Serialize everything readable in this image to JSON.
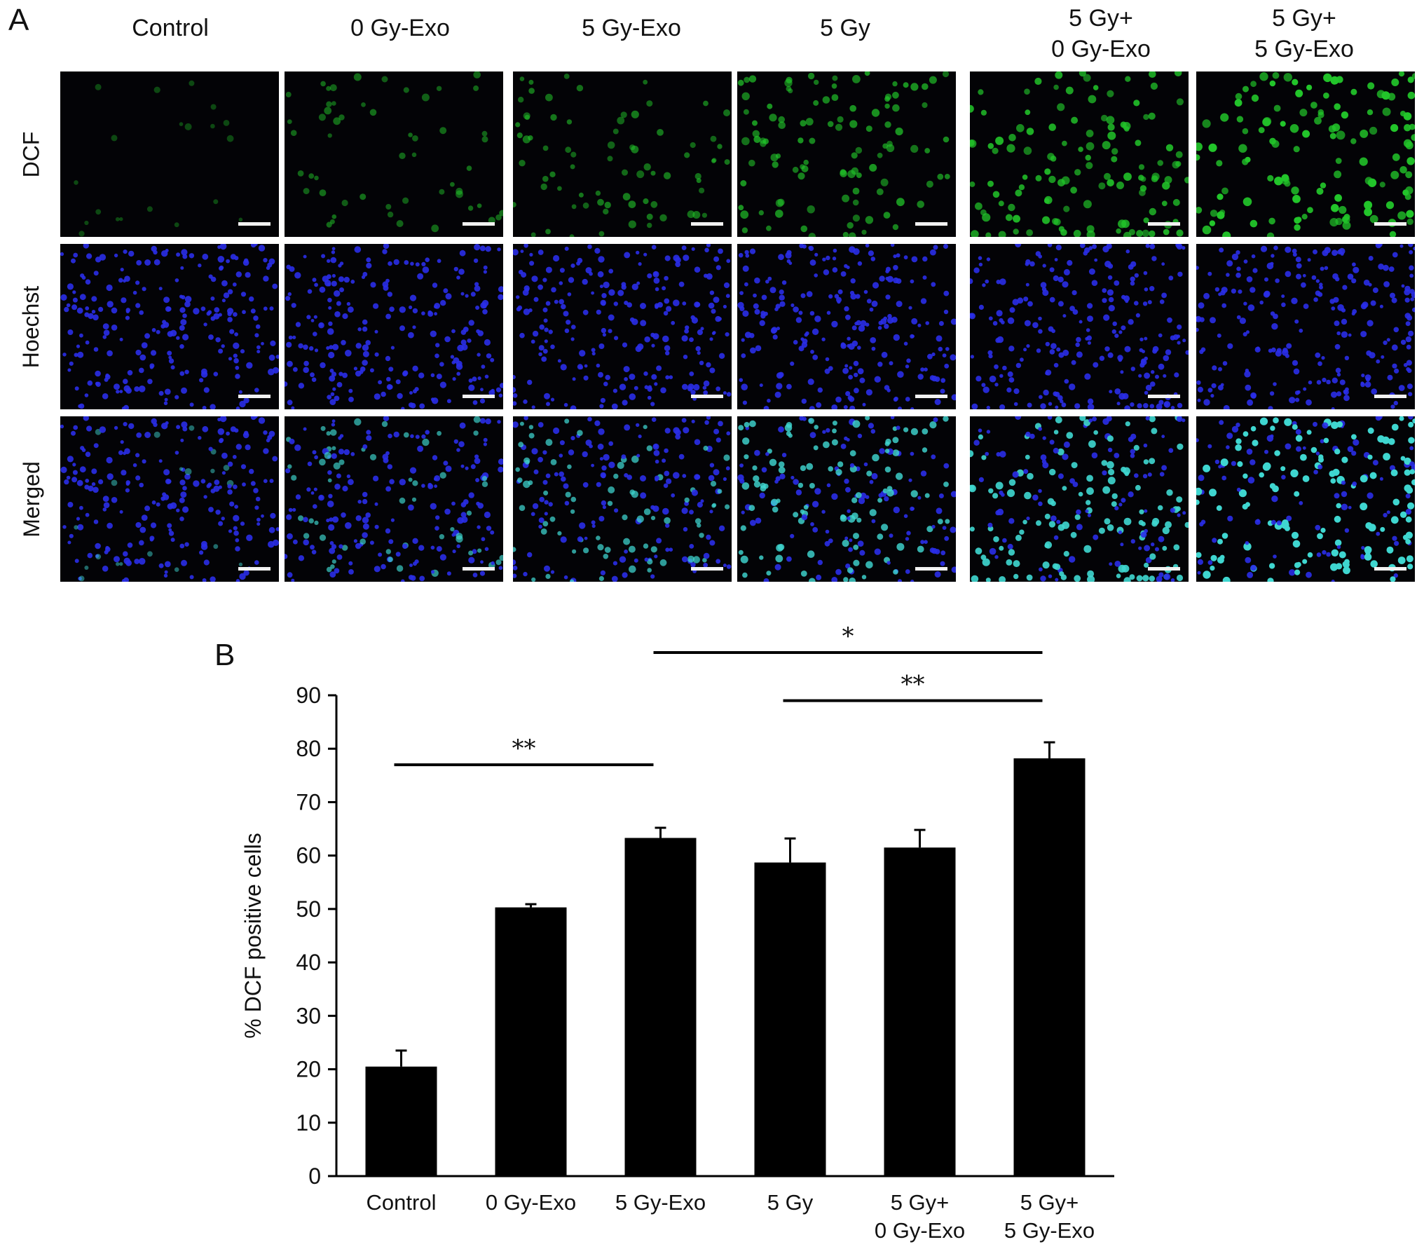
{
  "panel_a": {
    "letter": "A",
    "columns": [
      {
        "line1": "",
        "line2": "Control"
      },
      {
        "line1": "",
        "line2": "0 Gy-Exo"
      },
      {
        "line1": "",
        "line2": "5 Gy-Exo"
      },
      {
        "line1": "",
        "line2": "5 Gy"
      },
      {
        "line1": "5 Gy+",
        "line2": "0 Gy-Exo"
      },
      {
        "line1": "5 Gy+",
        "line2": "5 Gy-Exo"
      }
    ],
    "rows": [
      "DCF",
      "Hoechst",
      "Merged"
    ],
    "colors": {
      "dcf": "#22c52a",
      "hoechst": "#2a2ee8",
      "merged_positive": "#3fd6d0",
      "background": "#030306"
    },
    "dcf_intensity": [
      0.15,
      0.45,
      0.55,
      0.7,
      0.85,
      1.0
    ]
  },
  "panel_b": {
    "letter": "B"
  },
  "chart_data": {
    "type": "bar",
    "categories": [
      "Control",
      "0 Gy-Exo",
      "5 Gy-Exo",
      "5 Gy",
      "5 Gy+\n0 Gy-Exo",
      "5 Gy+\n5 Gy-Exo"
    ],
    "values": [
      20.5,
      50.3,
      63.3,
      58.7,
      61.5,
      78.2
    ],
    "errors": [
      3.0,
      0.6,
      1.9,
      4.5,
      3.3,
      3.0
    ],
    "title": "",
    "xlabel": "",
    "ylabel": "% DCF positive cells",
    "ylim": [
      0,
      90
    ],
    "yticks": [
      0,
      10,
      20,
      30,
      40,
      50,
      60,
      70,
      80,
      90
    ],
    "bar_color": "#000000",
    "grid": false,
    "legend": "none",
    "significance": [
      {
        "from": "Control",
        "to": "5 Gy-Exo",
        "label": "**",
        "level": 77
      },
      {
        "from": "5 Gy-Exo",
        "to": "5 Gy+\n5 Gy-Exo",
        "label": "*",
        "level": 98
      },
      {
        "from": "5 Gy",
        "to": "5 Gy+\n5 Gy-Exo",
        "label": "**",
        "level": 89
      }
    ]
  }
}
